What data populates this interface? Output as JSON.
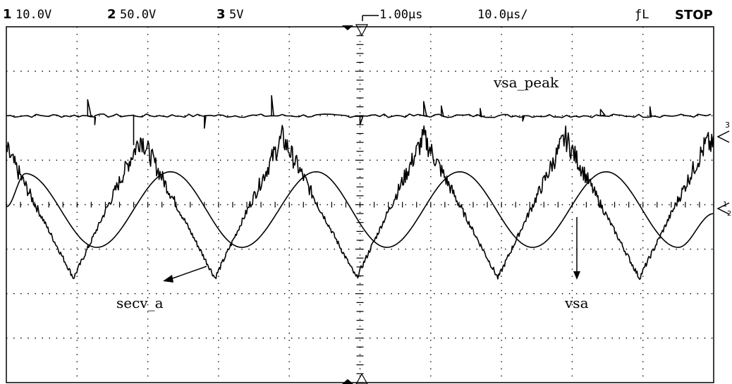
{
  "header": {
    "ch1_num": "1",
    "ch1_scale": "10.0V",
    "ch2_num": "2",
    "ch2_scale": "50.0V",
    "ch3_num": "3",
    "ch3_scale": "5V",
    "delay": "1.00μs",
    "timebase": "10.0μs/",
    "trigger": "ƒL",
    "run_state": "STOP"
  },
  "markers": {
    "ch3": "3",
    "ch1": "1",
    "ch2": "2"
  },
  "annotations": {
    "vsa_peak": "vsa_peak",
    "secv_a": "secv_a",
    "vsa": "vsa"
  },
  "chart_data": {
    "type": "line",
    "grid": true,
    "divisions": {
      "x": 10,
      "y": 8
    },
    "x_unit": "div",
    "y_unit": "div",
    "series": [
      {
        "name": "vsa_peak",
        "x": [
          0,
          10
        ],
        "y": [
          2.0,
          2.0
        ],
        "spikes": [
          {
            "x": 1.15,
            "dy": 0.36
          },
          {
            "x": 1.25,
            "dy": -0.2
          },
          {
            "x": 1.8,
            "dy": -0.65
          },
          {
            "x": 2.8,
            "dy": -0.28
          },
          {
            "x": 3.75,
            "dy": 0.45
          },
          {
            "x": 5.0,
            "dy": -0.2
          },
          {
            "x": 5.9,
            "dy": 0.32
          },
          {
            "x": 6.15,
            "dy": 0.22
          },
          {
            "x": 6.7,
            "dy": 0.16
          },
          {
            "x": 7.3,
            "dy": -0.12
          },
          {
            "x": 8.4,
            "dy": 0.14
          },
          {
            "x": 9.1,
            "dy": 0.2
          }
        ]
      },
      {
        "name": "vsa",
        "period": 4.1,
        "x": [
          0.0,
          0.27,
          1.28,
          2.32,
          3.33,
          4.38,
          5.38,
          6.41,
          7.44,
          8.48,
          9.5,
          10.0
        ],
        "y": [
          -0.05,
          0.7,
          -0.96,
          0.74,
          -0.96,
          0.74,
          -0.96,
          0.74,
          -0.96,
          0.74,
          -0.96,
          -0.2
        ]
      },
      {
        "name": "secv_a",
        "x": [
          0.0,
          0.95,
          1.9,
          2.95,
          3.9,
          4.95,
          5.9,
          6.95,
          7.9,
          8.95,
          9.9,
          10.0
        ],
        "y": [
          1.25,
          -1.65,
          1.52,
          -1.65,
          1.52,
          -1.65,
          1.52,
          -1.65,
          1.52,
          -1.65,
          1.4,
          1.3
        ]
      }
    ]
  }
}
